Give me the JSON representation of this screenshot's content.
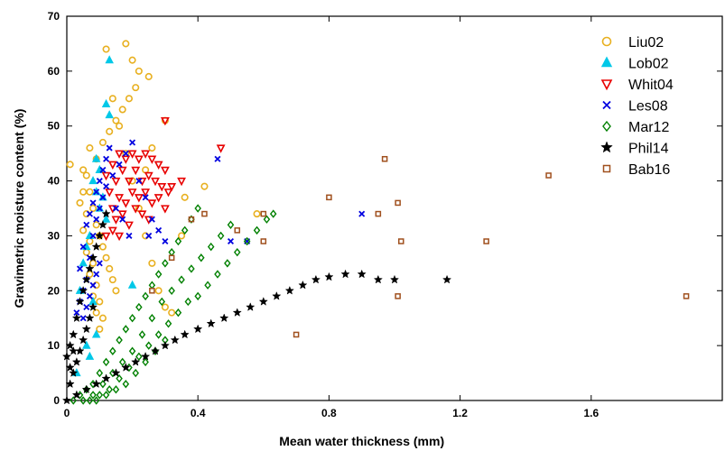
{
  "chart_data": {
    "type": "scatter",
    "xlabel": "Mean water thickness (mm)",
    "ylabel": "Gravimetric moisture content (%)",
    "xlim": [
      0,
      2.0
    ],
    "ylim": [
      0,
      70
    ],
    "x_ticks": [
      0,
      0.4,
      0.8,
      1.2,
      1.6
    ],
    "x_tick_labels": [
      "0",
      "0.4",
      "0.8",
      "1.2",
      "1.6"
    ],
    "y_ticks": [
      0,
      10,
      20,
      30,
      40,
      50,
      60,
      70
    ],
    "y_tick_labels": [
      "0",
      "10",
      "20",
      "30",
      "40",
      "50",
      "60",
      "70"
    ],
    "grid": false,
    "legend_position": "top-right",
    "series": [
      {
        "name": "Liu02",
        "marker": "circle",
        "color": "#E8B020",
        "filled": false,
        "points": [
          [
            0.01,
            43
          ],
          [
            0.05,
            42
          ],
          [
            0.06,
            41
          ],
          [
            0.07,
            38
          ],
          [
            0.08,
            35
          ],
          [
            0.09,
            32
          ],
          [
            0.1,
            30
          ],
          [
            0.11,
            28
          ],
          [
            0.12,
            26
          ],
          [
            0.13,
            24
          ],
          [
            0.14,
            22
          ],
          [
            0.15,
            20
          ],
          [
            0.07,
            46
          ],
          [
            0.09,
            44
          ],
          [
            0.11,
            47
          ],
          [
            0.13,
            49
          ],
          [
            0.15,
            51
          ],
          [
            0.17,
            53
          ],
          [
            0.19,
            55
          ],
          [
            0.21,
            57
          ],
          [
            0.2,
            62
          ],
          [
            0.22,
            60
          ],
          [
            0.25,
            59
          ],
          [
            0.12,
            64
          ],
          [
            0.18,
            65
          ],
          [
            0.14,
            55
          ],
          [
            0.16,
            50
          ],
          [
            0.18,
            45
          ],
          [
            0.2,
            40
          ],
          [
            0.22,
            35
          ],
          [
            0.24,
            30
          ],
          [
            0.26,
            25
          ],
          [
            0.28,
            20
          ],
          [
            0.3,
            17
          ],
          [
            0.32,
            16
          ],
          [
            0.42,
            39
          ],
          [
            0.36,
            37
          ],
          [
            0.3,
            51
          ],
          [
            0.26,
            46
          ],
          [
            0.24,
            42
          ],
          [
            0.04,
            36
          ],
          [
            0.05,
            31
          ],
          [
            0.06,
            27
          ],
          [
            0.07,
            23
          ],
          [
            0.08,
            19
          ],
          [
            0.09,
            16
          ],
          [
            0.1,
            13
          ],
          [
            0.05,
            38
          ],
          [
            0.06,
            34
          ],
          [
            0.07,
            29
          ],
          [
            0.08,
            25
          ],
          [
            0.09,
            21
          ],
          [
            0.1,
            18
          ],
          [
            0.11,
            15
          ],
          [
            0.58,
            34
          ],
          [
            0.35,
            30
          ]
        ]
      },
      {
        "name": "Lob02",
        "marker": "triangle-up",
        "color": "#00C8E8",
        "filled": true,
        "points": [
          [
            0.13,
            62
          ],
          [
            0.12,
            54
          ],
          [
            0.13,
            52
          ],
          [
            0.09,
            44
          ],
          [
            0.1,
            42
          ],
          [
            0.08,
            40
          ],
          [
            0.09,
            38
          ],
          [
            0.06,
            28
          ],
          [
            0.07,
            30
          ],
          [
            0.05,
            25
          ],
          [
            0.04,
            20
          ],
          [
            0.08,
            18
          ],
          [
            0.07,
            8
          ],
          [
            0.09,
            12
          ],
          [
            0.1,
            35
          ],
          [
            0.11,
            37
          ],
          [
            0.12,
            33
          ],
          [
            0.2,
            21
          ],
          [
            0.03,
            5
          ],
          [
            0.06,
            10
          ]
        ]
      },
      {
        "name": "Whit04",
        "marker": "triangle-down",
        "color": "#E80000",
        "filled": false,
        "points": [
          [
            0.12,
            41
          ],
          [
            0.14,
            43
          ],
          [
            0.16,
            45
          ],
          [
            0.18,
            44
          ],
          [
            0.2,
            45
          ],
          [
            0.22,
            44
          ],
          [
            0.24,
            45
          ],
          [
            0.26,
            44
          ],
          [
            0.28,
            43
          ],
          [
            0.3,
            42
          ],
          [
            0.13,
            38
          ],
          [
            0.15,
            40
          ],
          [
            0.17,
            42
          ],
          [
            0.19,
            40
          ],
          [
            0.21,
            42
          ],
          [
            0.23,
            40
          ],
          [
            0.25,
            41
          ],
          [
            0.27,
            40
          ],
          [
            0.29,
            39
          ],
          [
            0.31,
            38
          ],
          [
            0.14,
            35
          ],
          [
            0.16,
            37
          ],
          [
            0.18,
            36
          ],
          [
            0.2,
            38
          ],
          [
            0.22,
            37
          ],
          [
            0.24,
            38
          ],
          [
            0.26,
            36
          ],
          [
            0.28,
            37
          ],
          [
            0.3,
            35
          ],
          [
            0.15,
            33
          ],
          [
            0.17,
            34
          ],
          [
            0.19,
            32
          ],
          [
            0.21,
            35
          ],
          [
            0.23,
            34
          ],
          [
            0.25,
            33
          ],
          [
            0.32,
            39
          ],
          [
            0.3,
            51
          ],
          [
            0.47,
            46
          ],
          [
            0.35,
            40
          ],
          [
            0.12,
            30
          ],
          [
            0.14,
            31
          ],
          [
            0.16,
            30
          ]
        ]
      },
      {
        "name": "Les08",
        "marker": "x",
        "color": "#0000E0",
        "filled": true,
        "points": [
          [
            0.04,
            24
          ],
          [
            0.05,
            28
          ],
          [
            0.06,
            32
          ],
          [
            0.07,
            34
          ],
          [
            0.08,
            36
          ],
          [
            0.09,
            38
          ],
          [
            0.1,
            40
          ],
          [
            0.11,
            42
          ],
          [
            0.12,
            44
          ],
          [
            0.13,
            46
          ],
          [
            0.05,
            20
          ],
          [
            0.06,
            22
          ],
          [
            0.07,
            26
          ],
          [
            0.08,
            30
          ],
          [
            0.09,
            33
          ],
          [
            0.1,
            35
          ],
          [
            0.11,
            37
          ],
          [
            0.12,
            39
          ],
          [
            0.14,
            41
          ],
          [
            0.16,
            43
          ],
          [
            0.18,
            45
          ],
          [
            0.2,
            47
          ],
          [
            0.22,
            40
          ],
          [
            0.24,
            37
          ],
          [
            0.26,
            33
          ],
          [
            0.28,
            31
          ],
          [
            0.3,
            29
          ],
          [
            0.03,
            16
          ],
          [
            0.04,
            18
          ],
          [
            0.05,
            15
          ],
          [
            0.06,
            17
          ],
          [
            0.07,
            19
          ],
          [
            0.08,
            21
          ],
          [
            0.09,
            23
          ],
          [
            0.1,
            25
          ],
          [
            0.46,
            44
          ],
          [
            0.5,
            29
          ],
          [
            0.55,
            29
          ],
          [
            0.9,
            34
          ],
          [
            0.15,
            35
          ],
          [
            0.17,
            33
          ],
          [
            0.19,
            30
          ],
          [
            0.25,
            30
          ]
        ]
      },
      {
        "name": "Mar12",
        "marker": "diamond",
        "color": "#008000",
        "filled": false,
        "points": [
          [
            0.02,
            0
          ],
          [
            0.04,
            1
          ],
          [
            0.06,
            2
          ],
          [
            0.08,
            3
          ],
          [
            0.1,
            5
          ],
          [
            0.12,
            7
          ],
          [
            0.14,
            9
          ],
          [
            0.16,
            11
          ],
          [
            0.18,
            13
          ],
          [
            0.2,
            15
          ],
          [
            0.22,
            17
          ],
          [
            0.24,
            19
          ],
          [
            0.26,
            21
          ],
          [
            0.28,
            23
          ],
          [
            0.3,
            25
          ],
          [
            0.32,
            27
          ],
          [
            0.34,
            29
          ],
          [
            0.36,
            31
          ],
          [
            0.38,
            33
          ],
          [
            0.4,
            35
          ],
          [
            0.05,
            0
          ],
          [
            0.08,
            1
          ],
          [
            0.11,
            3
          ],
          [
            0.14,
            5
          ],
          [
            0.17,
            7
          ],
          [
            0.2,
            9
          ],
          [
            0.23,
            12
          ],
          [
            0.26,
            15
          ],
          [
            0.29,
            18
          ],
          [
            0.32,
            20
          ],
          [
            0.35,
            22
          ],
          [
            0.38,
            24
          ],
          [
            0.41,
            26
          ],
          [
            0.44,
            28
          ],
          [
            0.47,
            30
          ],
          [
            0.5,
            32
          ],
          [
            0.07,
            0
          ],
          [
            0.1,
            1
          ],
          [
            0.13,
            2
          ],
          [
            0.16,
            4
          ],
          [
            0.19,
            6
          ],
          [
            0.22,
            8
          ],
          [
            0.25,
            10
          ],
          [
            0.28,
            12
          ],
          [
            0.31,
            14
          ],
          [
            0.34,
            16
          ],
          [
            0.37,
            18
          ],
          [
            0.4,
            19
          ],
          [
            0.43,
            21
          ],
          [
            0.46,
            23
          ],
          [
            0.49,
            25
          ],
          [
            0.52,
            27
          ],
          [
            0.55,
            29
          ],
          [
            0.58,
            31
          ],
          [
            0.61,
            33
          ],
          [
            0.63,
            34
          ],
          [
            0.09,
            0
          ],
          [
            0.12,
            1
          ],
          [
            0.15,
            2
          ],
          [
            0.18,
            3
          ],
          [
            0.21,
            5
          ],
          [
            0.24,
            7
          ],
          [
            0.27,
            9
          ],
          [
            0.3,
            11
          ]
        ]
      },
      {
        "name": "Phil14",
        "marker": "star",
        "color": "#000000",
        "filled": true,
        "points": [
          [
            0,
            0
          ],
          [
            0.01,
            3
          ],
          [
            0.01,
            6
          ],
          [
            0.02,
            9
          ],
          [
            0.02,
            12
          ],
          [
            0.03,
            15
          ],
          [
            0.04,
            18
          ],
          [
            0.05,
            20
          ],
          [
            0.06,
            22
          ],
          [
            0.07,
            24
          ],
          [
            0.08,
            26
          ],
          [
            0.09,
            28
          ],
          [
            0.1,
            30
          ],
          [
            0.11,
            32
          ],
          [
            0.12,
            34
          ],
          [
            0.0,
            8
          ],
          [
            0.01,
            10
          ],
          [
            0.02,
            5
          ],
          [
            0.03,
            7
          ],
          [
            0.04,
            9
          ],
          [
            0.05,
            11
          ],
          [
            0.06,
            13
          ],
          [
            0.07,
            15
          ],
          [
            0.08,
            17
          ],
          [
            0.03,
            1
          ],
          [
            0.06,
            2
          ],
          [
            0.09,
            3
          ],
          [
            0.12,
            4
          ],
          [
            0.15,
            5
          ],
          [
            0.18,
            6
          ],
          [
            0.21,
            7
          ],
          [
            0.24,
            8
          ],
          [
            0.27,
            9
          ],
          [
            0.3,
            10
          ],
          [
            0.33,
            11
          ],
          [
            0.36,
            12
          ],
          [
            0.4,
            13
          ],
          [
            0.44,
            14
          ],
          [
            0.48,
            15
          ],
          [
            0.52,
            16
          ],
          [
            0.56,
            17
          ],
          [
            0.6,
            18
          ],
          [
            0.64,
            19
          ],
          [
            0.68,
            20
          ],
          [
            0.72,
            21
          ],
          [
            0.76,
            22
          ],
          [
            0.8,
            22.5
          ],
          [
            0.85,
            23
          ],
          [
            0.9,
            23
          ],
          [
            0.95,
            22
          ],
          [
            1.0,
            22
          ],
          [
            1.16,
            22
          ]
        ]
      },
      {
        "name": "Bab16",
        "marker": "square",
        "color": "#A0501E",
        "filled": false,
        "points": [
          [
            0.97,
            44
          ],
          [
            1.47,
            41
          ],
          [
            0.8,
            37
          ],
          [
            1.01,
            36
          ],
          [
            0.95,
            34
          ],
          [
            0.6,
            34
          ],
          [
            0.42,
            34
          ],
          [
            0.38,
            33
          ],
          [
            0.52,
            31
          ],
          [
            0.6,
            29
          ],
          [
            1.02,
            29
          ],
          [
            1.28,
            29
          ],
          [
            1.01,
            19
          ],
          [
            1.89,
            19
          ],
          [
            0.7,
            12
          ],
          [
            0.32,
            26
          ],
          [
            0.26,
            20
          ]
        ]
      }
    ]
  }
}
